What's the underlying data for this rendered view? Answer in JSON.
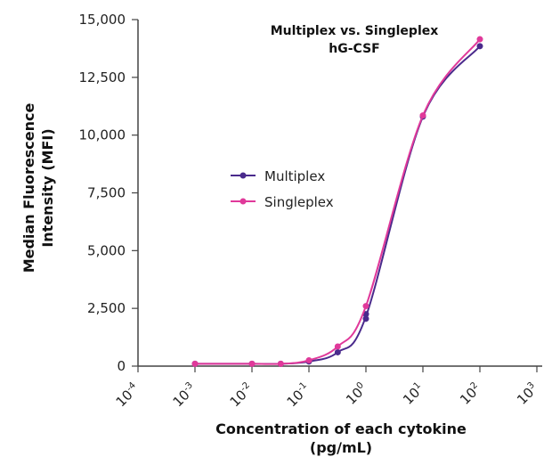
{
  "chart_data": {
    "type": "line",
    "title": "Multiplex vs. Singleplex",
    "subtitle": "hG-CSF",
    "xlabel": [
      "Concentration of each cytokine",
      "(pg/mL)"
    ],
    "ylabel": [
      "Median Fluorescence",
      "Intensity (MFI)"
    ],
    "x_scale": "log",
    "xlim": [
      0.0001,
      1000
    ],
    "ylim": [
      0,
      15000
    ],
    "x_ticks": [
      {
        "base": "10",
        "exp": "-4"
      },
      {
        "base": "10",
        "exp": "-3"
      },
      {
        "base": "10",
        "exp": "-2"
      },
      {
        "base": "10",
        "exp": "-1"
      },
      {
        "base": "10",
        "exp": "0"
      },
      {
        "base": "10",
        "exp": "1"
      },
      {
        "base": "10",
        "exp": "2"
      },
      {
        "base": "10",
        "exp": "3"
      }
    ],
    "y_ticks": [
      "0",
      "2,500",
      "5,000",
      "7,500",
      "10,000",
      "12,500",
      "15,000"
    ],
    "legend_position": "center-left",
    "series": [
      {
        "name": "Multiplex",
        "color": "#4a2a8c",
        "points": [
          [
            0.001,
            100
          ],
          [
            0.01,
            100
          ],
          [
            0.032,
            100
          ],
          [
            0.1,
            200
          ],
          [
            0.32,
            600
          ],
          [
            1,
            2050
          ],
          [
            1,
            2250
          ],
          [
            10,
            10800
          ],
          [
            100,
            13850
          ]
        ]
      },
      {
        "name": "Singleplex",
        "color": "#e0399a",
        "points": [
          [
            0.001,
            100
          ],
          [
            0.01,
            100
          ],
          [
            0.032,
            100
          ],
          [
            0.1,
            250
          ],
          [
            0.32,
            850
          ],
          [
            1,
            2600
          ],
          [
            10,
            10850
          ],
          [
            100,
            14150
          ]
        ]
      }
    ],
    "grid": false
  }
}
